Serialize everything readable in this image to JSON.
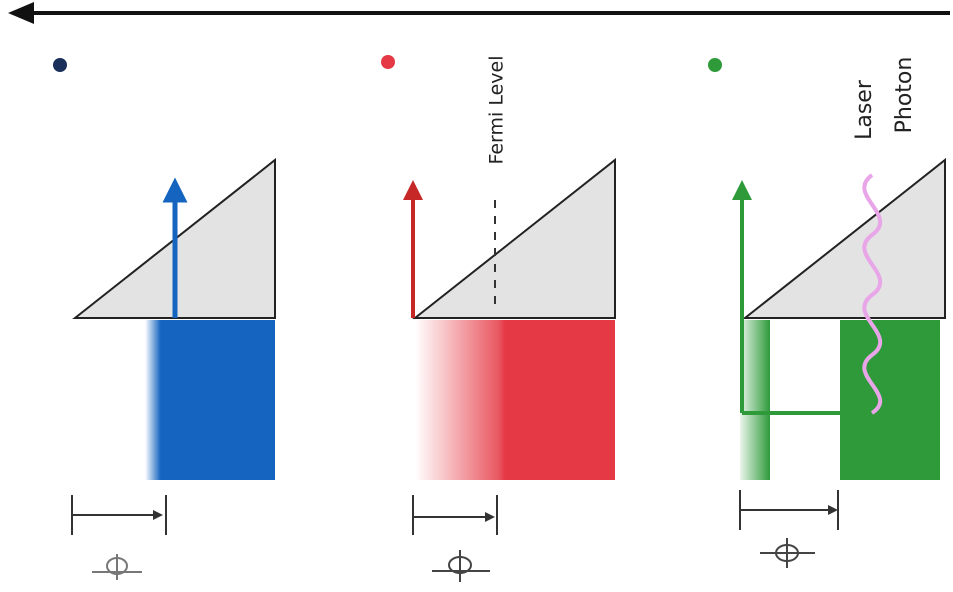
{
  "annotations": {
    "fermi_level": "Fermi Level",
    "laser_photon": [
      "Laser",
      "Photon"
    ]
  }
}
